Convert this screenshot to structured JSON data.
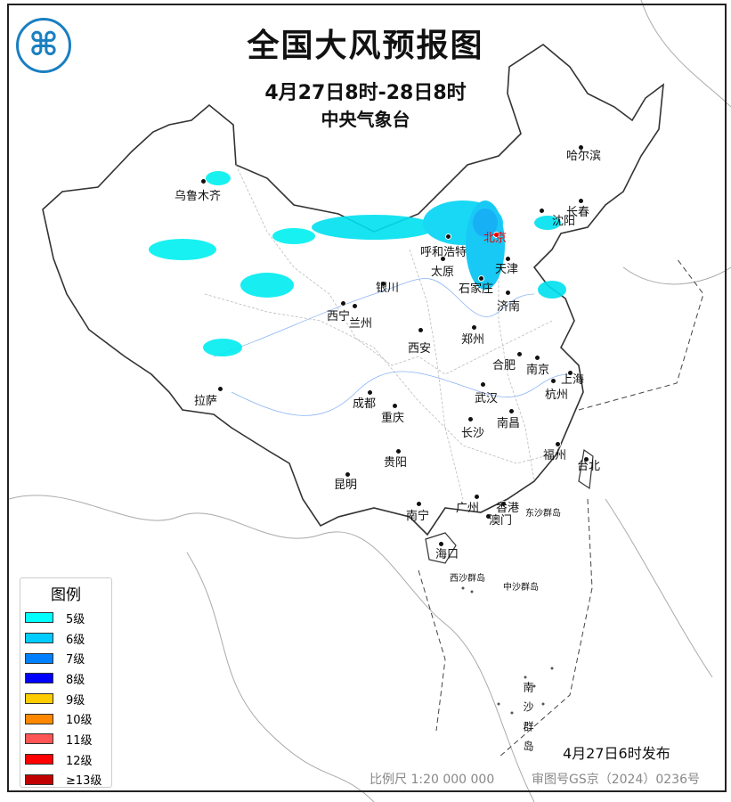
{
  "header": {
    "title": "全国大风预报图",
    "period": "4月27日8时-28日8时",
    "agency": "中央气象台",
    "logo_icon": "cma-logo-icon"
  },
  "cities": [
    "乌鲁木齐",
    "拉萨",
    "西宁",
    "兰州",
    "银川",
    "呼和浩特",
    "太原",
    "石家庄",
    "北京",
    "天津",
    "济南",
    "郑州",
    "西安",
    "合肥",
    "南京",
    "上海",
    "杭州",
    "武汉",
    "南昌",
    "长沙",
    "成都",
    "重庆",
    "贵阳",
    "昆明",
    "南宁",
    "广州",
    "香港",
    "澳门",
    "福州",
    "台北",
    "海口",
    "沈阳",
    "长春",
    "哈尔滨"
  ],
  "capital": "北京",
  "islands": [
    "西沙群岛",
    "中沙群岛",
    "南沙群岛",
    "东沙群岛"
  ],
  "legend": {
    "title": "图例",
    "items": [
      {
        "label": "5级",
        "color": "#00ffff"
      },
      {
        "label": "6级",
        "color": "#00ccff"
      },
      {
        "label": "7级",
        "color": "#0080ff"
      },
      {
        "label": "8级",
        "color": "#0000ff"
      },
      {
        "label": "9级",
        "color": "#ffcc00"
      },
      {
        "label": "10级",
        "color": "#ff8800"
      },
      {
        "label": "11级",
        "color": "#ff5555"
      },
      {
        "label": "12级",
        "color": "#ff0000"
      },
      {
        "label": "≥13级",
        "color": "#c00000"
      }
    ]
  },
  "footer": {
    "issued": "4月27日6时发布",
    "scale": "比例尺 1:20 000 000",
    "approval": "审图号GS京（2024）0236号"
  }
}
